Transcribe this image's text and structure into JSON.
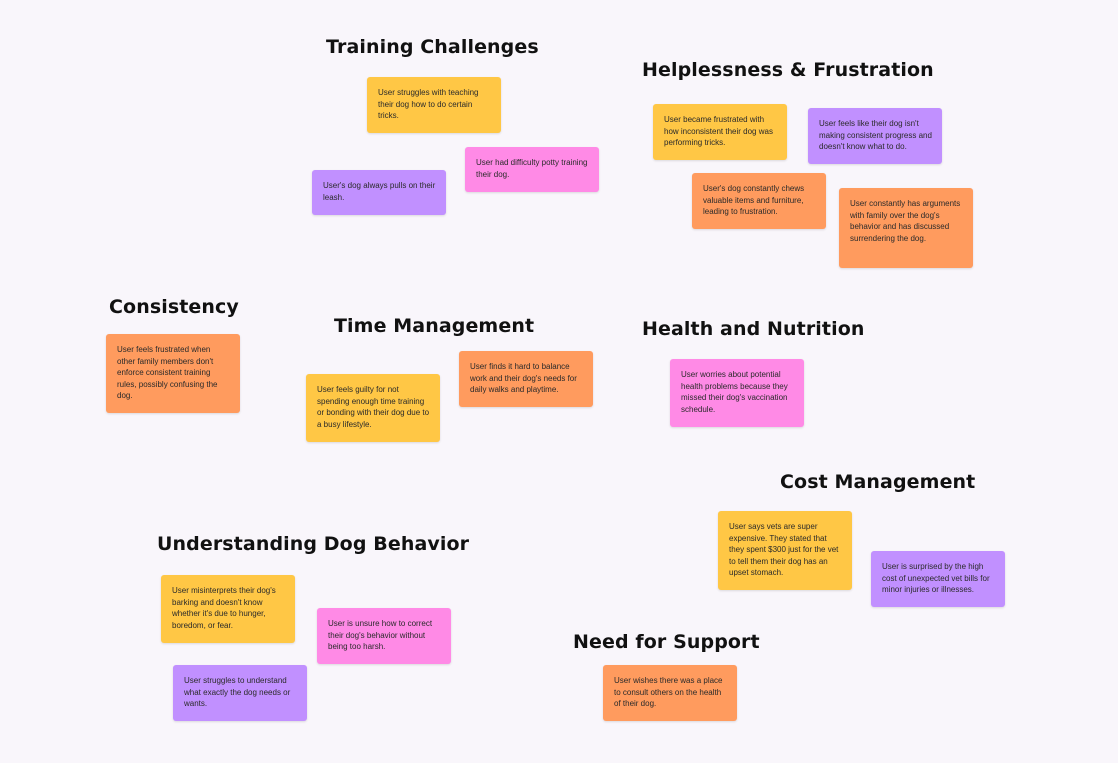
{
  "colors": {
    "background": "#f9f6fb",
    "yellow": "#ffc745",
    "purple": "#c190ff",
    "pink": "#ff8ae6",
    "orange": "#ff9b5e",
    "heading": "#111111"
  },
  "clusters": {
    "training": {
      "title": "Training Challenges",
      "notes": [
        "User struggles with teaching their dog how to do certain tricks.",
        "User had difficulty potty training their dog.",
        "User's dog always pulls on their leash."
      ]
    },
    "helplessness": {
      "title": "Helplessness & Frustration",
      "notes": [
        "User became frustrated with how inconsistent their dog was performing tricks.",
        "User feels like their dog isn't making consistent progress and doesn't know what to do.",
        "User's dog constantly chews valuable items and furniture, leading to frustration.",
        "User constantly has arguments with family over the dog's behavior and has discussed surrendering the dog."
      ]
    },
    "consistency": {
      "title": "Consistency",
      "notes": [
        "User feels frustrated when other family members don't enforce consistent training rules, possibly confusing the dog."
      ]
    },
    "time": {
      "title": "Time Management",
      "notes": [
        "User finds it hard to balance work and their dog's needs for daily walks and playtime.",
        "User feels guilty for not spending enough time training or bonding with their dog due to a busy lifestyle."
      ]
    },
    "health": {
      "title": "Health and Nutrition",
      "notes": [
        "User worries about potential health problems because they missed their dog's vaccination schedule."
      ]
    },
    "cost": {
      "title": "Cost Management",
      "notes": [
        "User says vets are super expensive. They stated that they spent $300 just for the vet to tell them their dog has an upset stomach.",
        "User is surprised by the high cost of unexpected vet bills for minor injuries or illnesses."
      ]
    },
    "understanding": {
      "title": "Understanding Dog Behavior",
      "notes": [
        "User misinterprets their dog's barking and doesn't know whether it's due to hunger, boredom, or fear.",
        "User is unsure how to correct their dog's behavior without being too harsh.",
        "User struggles to understand what exactly the dog needs or wants."
      ]
    },
    "support": {
      "title": "Need for Support",
      "notes": [
        "User wishes there was a place to consult others on the health of their dog."
      ]
    }
  }
}
